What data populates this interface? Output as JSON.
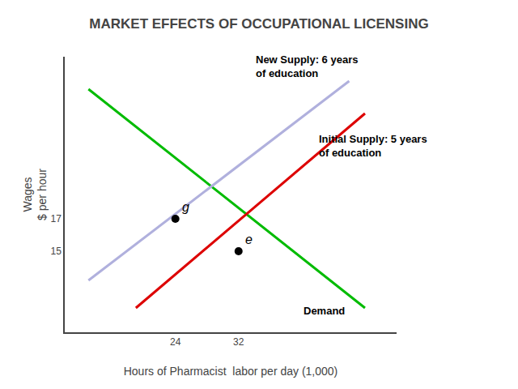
{
  "chart_data": {
    "type": "line",
    "title": "MARKET EFFECTS OF OCCUPATIONAL LICENSING",
    "xlabel": "Hours of Pharmacist  labor per day (1,000)",
    "ylabel": "Wages\n$ per hour",
    "xlim": [
      10,
      52
    ],
    "ylim": [
      10,
      27
    ],
    "xticks": [
      24,
      32
    ],
    "yticks": [
      15,
      17
    ],
    "grid": false,
    "series": [
      {
        "name": "Demand",
        "color": "#00bb00",
        "x": [
          13,
          48
        ],
        "values": [
          25,
          11.5
        ],
        "label_x": 40,
        "label_y": 11.8
      },
      {
        "name": "Initial Supply: 5 years\nof education",
        "color": "#dd0000",
        "x": [
          19,
          48
        ],
        "values": [
          11.5,
          23.5
        ],
        "label_x": 42,
        "label_y": 21.5
      },
      {
        "name": "New Supply: 6 years\nof education",
        "color": "#b0b0dd",
        "x": [
          13,
          46
        ],
        "values": [
          13.2,
          25.5
        ],
        "label_x": 34,
        "label_y": 25.5
      },
      {
        "type": "scatter",
        "marker": "circle",
        "color": "#000000",
        "x": [
          24,
          32
        ],
        "values": [
          17,
          15
        ],
        "labels": [
          "g",
          "e"
        ]
      }
    ]
  }
}
